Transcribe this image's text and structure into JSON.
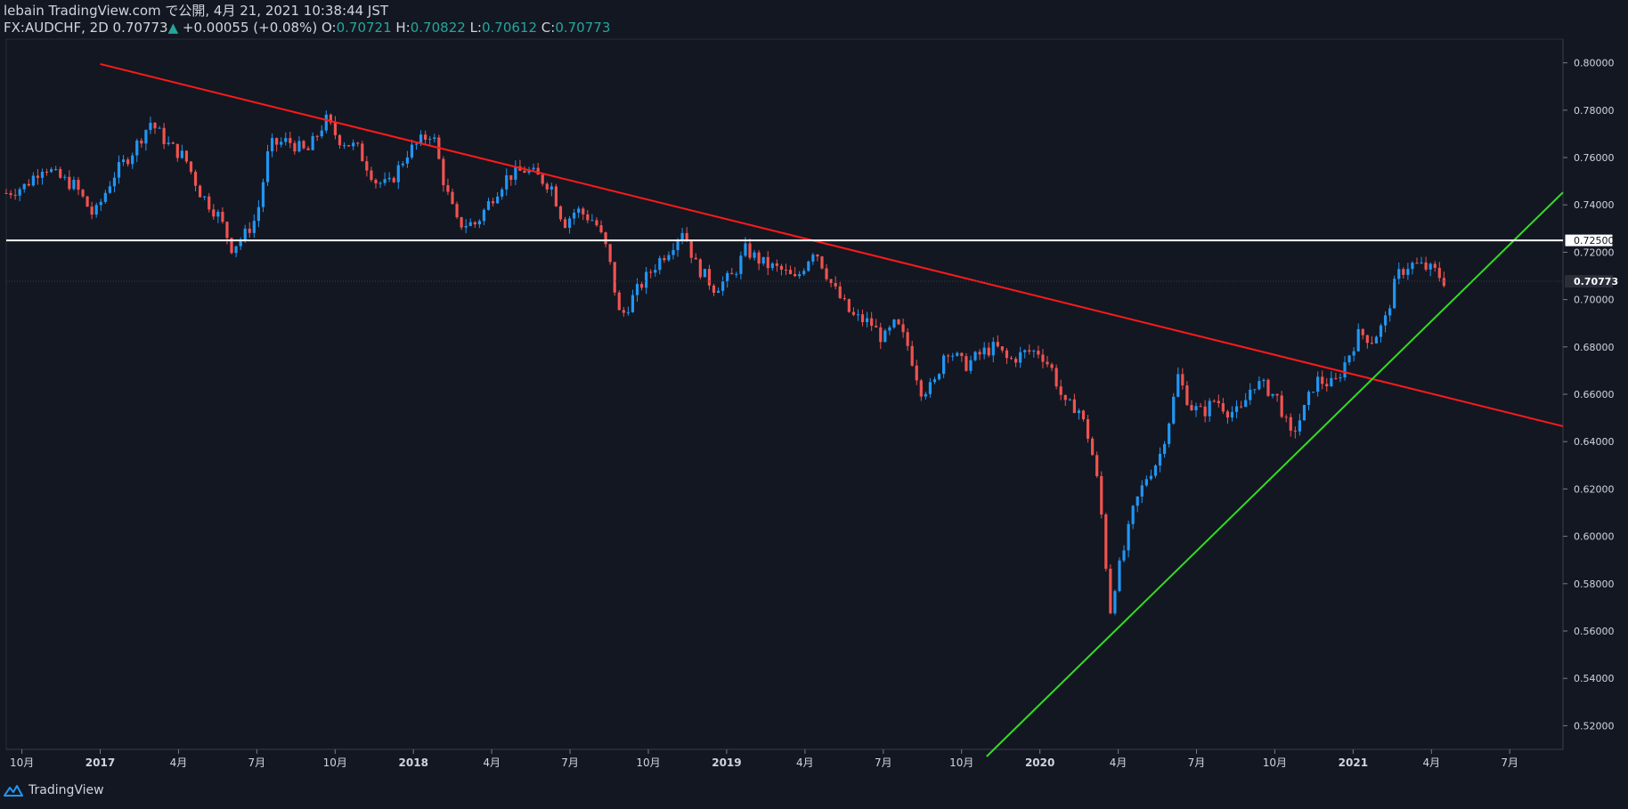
{
  "header": {
    "publisher_line": "lebain TradingView.com で公開, 4月 21, 2021 10:38:44 JST",
    "symbol": "FX:AUDCHF, 2D",
    "last": "0.70773",
    "change": "+0.00055 (+0.08%)",
    "o_label": "O:",
    "o_value": "0.70721",
    "h_label": "H:",
    "h_value": "0.70822",
    "l_label": "L:",
    "l_value": "0.70612",
    "c_label": "C:",
    "c_value": "0.70773"
  },
  "footer": {
    "brand": "TradingView"
  },
  "colors": {
    "background": "#131722",
    "up": "#2196f3",
    "down": "#ef5350",
    "trend_down": "#ff1a1a",
    "trend_up": "#33dd22",
    "level": "#ffffff"
  },
  "chart_data": {
    "type": "candlestick",
    "symbol": "FX:AUDCHF",
    "timeframe": "2D",
    "ylim": [
      0.51,
      0.81
    ],
    "y_ticks": [
      0.52,
      0.54,
      0.56,
      0.58,
      0.6,
      0.62,
      0.64,
      0.66,
      0.68,
      0.7,
      0.72,
      0.74,
      0.76,
      0.78,
      0.8
    ],
    "y_tick_labels": [
      "0.52000",
      "0.54000",
      "0.56000",
      "0.58000",
      "0.60000",
      "0.62000",
      "0.64000",
      "0.66000",
      "0.68000",
      "0.70000",
      "0.72000",
      "0.74000",
      "0.76000",
      "0.78000",
      "0.80000"
    ],
    "x_range": [
      2016.7,
      2021.67
    ],
    "x_ticks": [
      {
        "t": 2016.75,
        "label": "10月"
      },
      {
        "t": 2017.0,
        "label": "2017"
      },
      {
        "t": 2017.25,
        "label": "4月"
      },
      {
        "t": 2017.5,
        "label": "7月"
      },
      {
        "t": 2017.75,
        "label": "10月"
      },
      {
        "t": 2018.0,
        "label": "2018"
      },
      {
        "t": 2018.25,
        "label": "4月"
      },
      {
        "t": 2018.5,
        "label": "7月"
      },
      {
        "t": 2018.75,
        "label": "10月"
      },
      {
        "t": 2019.0,
        "label": "2019"
      },
      {
        "t": 2019.25,
        "label": "4月"
      },
      {
        "t": 2019.5,
        "label": "7月"
      },
      {
        "t": 2019.75,
        "label": "10月"
      },
      {
        "t": 2020.0,
        "label": "2020"
      },
      {
        "t": 2020.25,
        "label": "4月"
      },
      {
        "t": 2020.5,
        "label": "7月"
      },
      {
        "t": 2020.75,
        "label": "10月"
      },
      {
        "t": 2021.0,
        "label": "2021"
      },
      {
        "t": 2021.25,
        "label": "4月"
      },
      {
        "t": 2021.5,
        "label": "7月"
      }
    ],
    "price_path": [
      [
        2016.7,
        0.745
      ],
      [
        2016.76,
        0.748
      ],
      [
        2016.82,
        0.757
      ],
      [
        2016.86,
        0.752
      ],
      [
        2016.92,
        0.748
      ],
      [
        2016.98,
        0.735
      ],
      [
        2017.04,
        0.752
      ],
      [
        2017.1,
        0.762
      ],
      [
        2017.16,
        0.775
      ],
      [
        2017.22,
        0.765
      ],
      [
        2017.27,
        0.76
      ],
      [
        2017.32,
        0.745
      ],
      [
        2017.38,
        0.735
      ],
      [
        2017.42,
        0.722
      ],
      [
        2017.46,
        0.727
      ],
      [
        2017.5,
        0.735
      ],
      [
        2017.54,
        0.765
      ],
      [
        2017.6,
        0.767
      ],
      [
        2017.66,
        0.762
      ],
      [
        2017.72,
        0.776
      ],
      [
        2017.76,
        0.768
      ],
      [
        2017.82,
        0.764
      ],
      [
        2017.88,
        0.75
      ],
      [
        2017.92,
        0.748
      ],
      [
        2017.98,
        0.762
      ],
      [
        2018.06,
        0.771
      ],
      [
        2018.1,
        0.748
      ],
      [
        2018.14,
        0.732
      ],
      [
        2018.2,
        0.732
      ],
      [
        2018.26,
        0.745
      ],
      [
        2018.3,
        0.752
      ],
      [
        2018.36,
        0.755
      ],
      [
        2018.44,
        0.748
      ],
      [
        2018.48,
        0.732
      ],
      [
        2018.52,
        0.738
      ],
      [
        2018.58,
        0.733
      ],
      [
        2018.62,
        0.72
      ],
      [
        2018.66,
        0.692
      ],
      [
        2018.72,
        0.705
      ],
      [
        2018.78,
        0.716
      ],
      [
        2018.82,
        0.722
      ],
      [
        2018.86,
        0.73
      ],
      [
        2018.9,
        0.715
      ],
      [
        2018.96,
        0.705
      ],
      [
        2019.02,
        0.71
      ],
      [
        2019.06,
        0.721
      ],
      [
        2019.12,
        0.715
      ],
      [
        2019.18,
        0.712
      ],
      [
        2019.22,
        0.708
      ],
      [
        2019.28,
        0.722
      ],
      [
        2019.34,
        0.705
      ],
      [
        2019.4,
        0.693
      ],
      [
        2019.46,
        0.69
      ],
      [
        2019.5,
        0.683
      ],
      [
        2019.54,
        0.69
      ],
      [
        2019.58,
        0.68
      ],
      [
        2019.62,
        0.662
      ],
      [
        2019.66,
        0.663
      ],
      [
        2019.7,
        0.68
      ],
      [
        2019.76,
        0.672
      ],
      [
        2019.82,
        0.678
      ],
      [
        2019.86,
        0.68
      ],
      [
        2019.9,
        0.674
      ],
      [
        2019.96,
        0.678
      ],
      [
        2020.0,
        0.678
      ],
      [
        2020.04,
        0.67
      ],
      [
        2020.08,
        0.655
      ],
      [
        2020.12,
        0.655
      ],
      [
        2020.16,
        0.64
      ],
      [
        2020.19,
        0.618
      ],
      [
        2020.21,
        0.59
      ],
      [
        2020.22,
        0.565
      ],
      [
        2020.24,
        0.58
      ],
      [
        2020.27,
        0.595
      ],
      [
        2020.3,
        0.612
      ],
      [
        2020.34,
        0.625
      ],
      [
        2020.38,
        0.633
      ],
      [
        2020.42,
        0.653
      ],
      [
        2020.44,
        0.668
      ],
      [
        2020.48,
        0.655
      ],
      [
        2020.52,
        0.652
      ],
      [
        2020.56,
        0.658
      ],
      [
        2020.6,
        0.653
      ],
      [
        2020.64,
        0.652
      ],
      [
        2020.68,
        0.665
      ],
      [
        2020.72,
        0.663
      ],
      [
        2020.76,
        0.658
      ],
      [
        2020.8,
        0.642
      ],
      [
        2020.84,
        0.652
      ],
      [
        2020.88,
        0.666
      ],
      [
        2020.94,
        0.664
      ],
      [
        2020.98,
        0.675
      ],
      [
        2021.02,
        0.686
      ],
      [
        2021.06,
        0.683
      ],
      [
        2021.1,
        0.69
      ],
      [
        2021.14,
        0.71
      ],
      [
        2021.18,
        0.715
      ],
      [
        2021.22,
        0.714
      ],
      [
        2021.26,
        0.712
      ],
      [
        2021.29,
        0.708
      ]
    ],
    "lines": [
      {
        "name": "descending-trendline",
        "color": "red",
        "from": [
          2017.0,
          0.7995
        ],
        "to": [
          2021.67,
          0.6465
        ]
      },
      {
        "name": "ascending-trendline",
        "color": "green",
        "from": [
          2019.83,
          0.507
        ],
        "to": [
          2021.67,
          0.7453
        ]
      },
      {
        "name": "horizontal-level",
        "color": "white",
        "value": 0.725
      }
    ],
    "price_labels": [
      {
        "value": 0.725,
        "label": "0.72500"
      },
      {
        "value": 0.70773,
        "label": "0.70773"
      }
    ]
  }
}
